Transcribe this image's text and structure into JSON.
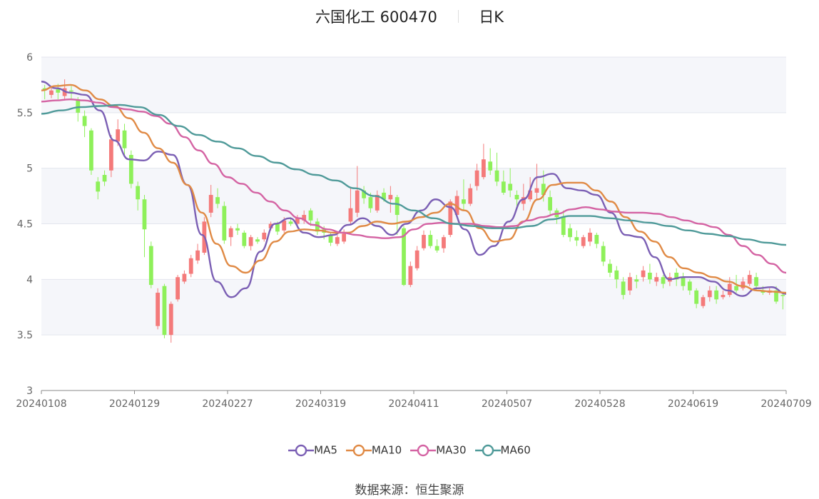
{
  "header": {
    "stock_name": "六国化工 600470",
    "period": "日K"
  },
  "source": {
    "label": "数据来源：",
    "provider": "恒生聚源"
  },
  "chart_data": {
    "type": "candlestick",
    "ylim": [
      3,
      6
    ],
    "yticks": [
      "3",
      "3.5",
      "4",
      "4.5",
      "5",
      "5.5",
      "6"
    ],
    "xticks": [
      "20240108",
      "20240129",
      "20240227",
      "20240319",
      "20240411",
      "20240507",
      "20240528",
      "20240619",
      "20240709"
    ],
    "up_color": "#f47a7a",
    "down_color": "#8ef05a",
    "grid_bands": true,
    "legend_position": "bottom",
    "series": [
      {
        "name": "MA5",
        "color": "#7b5fb4",
        "values": [
          5.78,
          5.72,
          5.68,
          5.66,
          5.52,
          5.25,
          5.08,
          5.07,
          5.15,
          5.12,
          4.85,
          4.4,
          3.98,
          3.84,
          3.92,
          4.25,
          4.5,
          4.55,
          4.42,
          4.38,
          4.4,
          4.49,
          4.55,
          4.48,
          4.4,
          4.5,
          4.62,
          4.72,
          4.65,
          4.45,
          4.22,
          4.3,
          4.52,
          4.72,
          4.92,
          4.95,
          4.82,
          4.8,
          4.76,
          4.6,
          4.4,
          4.38,
          4.2,
          4.0,
          4.02,
          4.02,
          3.98,
          3.9,
          3.85,
          3.92,
          3.93,
          3.87
        ]
      },
      {
        "name": "MA10",
        "color": "#e08a45",
        "values": [
          5.7,
          5.74,
          5.75,
          5.7,
          5.62,
          5.56,
          5.45,
          5.32,
          5.18,
          5.05,
          4.85,
          4.6,
          4.32,
          4.12,
          4.06,
          4.17,
          4.34,
          4.43,
          4.45,
          4.44,
          4.42,
          4.42,
          4.48,
          4.52,
          4.5,
          4.52,
          4.56,
          4.6,
          4.68,
          4.62,
          4.46,
          4.34,
          4.36,
          4.52,
          4.72,
          4.85,
          4.87,
          4.87,
          4.8,
          4.7,
          4.56,
          4.43,
          4.34,
          4.2,
          4.1,
          4.06,
          4.02,
          3.98,
          3.94,
          3.9,
          3.89,
          3.88
        ]
      },
      {
        "name": "MA30",
        "color": "#d463a3",
        "values": [
          5.6,
          5.61,
          5.62,
          5.61,
          5.59,
          5.55,
          5.53,
          5.51,
          5.47,
          5.4,
          5.28,
          5.16,
          5.04,
          4.92,
          4.86,
          4.78,
          4.7,
          4.62,
          4.55,
          4.49,
          4.45,
          4.42,
          4.4,
          4.38,
          4.37,
          4.38,
          4.45,
          4.5,
          4.51,
          4.5,
          4.5,
          4.48,
          4.47,
          4.48,
          4.53,
          4.56,
          4.59,
          4.63,
          4.65,
          4.63,
          4.61,
          4.6,
          4.6,
          4.59,
          4.56,
          4.53,
          4.5,
          4.47,
          4.4,
          4.3,
          4.22,
          4.14,
          4.06
        ]
      },
      {
        "name": "MA60",
        "color": "#4f9a99",
        "values": [
          5.49,
          5.52,
          5.55,
          5.56,
          5.57,
          5.55,
          5.48,
          5.38,
          5.3,
          5.24,
          5.18,
          5.11,
          5.05,
          4.99,
          4.94,
          4.89,
          4.82,
          4.75,
          4.68,
          4.62,
          4.55,
          4.5,
          4.48,
          4.46,
          4.46,
          4.48,
          4.54,
          4.57,
          4.57,
          4.55,
          4.53,
          4.51,
          4.48,
          4.44,
          4.41,
          4.39,
          4.36,
          4.33,
          4.31
        ]
      }
    ],
    "candles": [
      [
        5.72,
        5.7,
        5.75,
        5.62
      ],
      [
        5.66,
        5.7,
        5.74,
        5.63
      ],
      [
        5.71,
        5.68,
        5.76,
        5.62
      ],
      [
        5.65,
        5.72,
        5.8,
        5.62
      ],
      [
        5.7,
        5.69,
        5.74,
        5.62
      ],
      [
        5.62,
        5.5,
        5.64,
        5.42
      ],
      [
        5.47,
        5.38,
        5.52,
        5.28
      ],
      [
        5.34,
        4.98,
        5.36,
        4.94
      ],
      [
        4.88,
        4.79,
        4.92,
        4.72
      ],
      [
        4.94,
        4.88,
        4.98,
        4.84
      ],
      [
        4.98,
        5.26,
        5.3,
        4.92
      ],
      [
        5.24,
        5.35,
        5.44,
        5.2
      ],
      [
        5.34,
        5.18,
        5.4,
        5.12
      ],
      [
        5.12,
        4.86,
        5.16,
        4.82
      ],
      [
        4.84,
        4.72,
        4.88,
        4.62
      ],
      [
        4.72,
        4.45,
        4.76,
        4.2
      ],
      [
        4.3,
        3.95,
        4.34,
        3.92
      ],
      [
        3.58,
        3.88,
        3.92,
        3.55
      ],
      [
        3.94,
        3.5,
        3.96,
        3.47
      ],
      [
        3.5,
        3.78,
        3.8,
        3.43
      ],
      [
        3.82,
        4.02,
        4.04,
        3.8
      ],
      [
        3.98,
        4.05,
        4.08,
        3.96
      ],
      [
        4.05,
        4.19,
        4.22,
        4.02
      ],
      [
        4.17,
        4.26,
        4.32,
        4.14
      ],
      [
        4.24,
        4.52,
        4.56,
        4.22
      ],
      [
        4.6,
        4.76,
        4.85,
        4.56
      ],
      [
        4.74,
        4.68,
        4.82,
        4.64
      ],
      [
        4.66,
        4.35,
        4.7,
        4.32
      ],
      [
        4.38,
        4.46,
        4.48,
        4.3
      ],
      [
        4.46,
        4.44,
        4.5,
        4.4
      ],
      [
        4.42,
        4.3,
        4.44,
        4.28
      ],
      [
        4.3,
        4.38,
        4.4,
        4.26
      ],
      [
        4.36,
        4.34,
        4.38,
        4.32
      ],
      [
        4.36,
        4.42,
        4.45,
        4.34
      ],
      [
        4.46,
        4.5,
        4.52,
        4.44
      ],
      [
        4.5,
        4.43,
        4.52,
        4.4
      ],
      [
        4.44,
        4.53,
        4.56,
        4.42
      ],
      [
        4.52,
        4.5,
        4.56,
        4.48
      ],
      [
        4.5,
        4.55,
        4.58,
        4.46
      ],
      [
        4.53,
        4.58,
        4.62,
        4.5
      ],
      [
        4.62,
        4.53,
        4.64,
        4.48
      ],
      [
        4.52,
        4.43,
        4.55,
        4.4
      ],
      [
        4.45,
        4.42,
        4.48,
        4.36
      ],
      [
        4.4,
        4.33,
        4.42,
        4.3
      ],
      [
        4.32,
        4.38,
        4.4,
        4.3
      ],
      [
        4.34,
        4.41,
        4.45,
        4.32
      ],
      [
        4.52,
        4.64,
        4.82,
        4.5
      ],
      [
        4.6,
        4.8,
        5.02,
        4.56
      ],
      [
        4.8,
        4.73,
        4.84,
        4.68
      ],
      [
        4.74,
        4.64,
        4.78,
        4.6
      ],
      [
        4.62,
        4.76,
        4.8,
        4.6
      ],
      [
        4.78,
        4.72,
        4.82,
        4.7
      ],
      [
        4.72,
        4.76,
        4.84,
        4.6
      ],
      [
        4.74,
        4.58,
        4.76,
        4.4
      ],
      [
        4.46,
        3.95,
        4.48,
        3.94
      ],
      [
        3.95,
        4.12,
        4.16,
        3.93
      ],
      [
        4.1,
        4.26,
        4.3,
        4.08
      ],
      [
        4.28,
        4.4,
        4.44,
        4.26
      ],
      [
        4.4,
        4.3,
        4.44,
        4.28
      ],
      [
        4.3,
        4.26,
        4.36,
        4.24
      ],
      [
        4.28,
        4.38,
        4.4,
        4.24
      ],
      [
        4.4,
        4.7,
        4.72,
        4.38
      ],
      [
        4.58,
        4.75,
        4.8,
        4.56
      ],
      [
        4.72,
        4.68,
        4.9,
        4.62
      ],
      [
        4.68,
        4.82,
        4.86,
        4.66
      ],
      [
        4.84,
        4.98,
        5.04,
        4.8
      ],
      [
        4.92,
        5.08,
        5.22,
        4.9
      ],
      [
        5.06,
        4.98,
        5.18,
        4.94
      ],
      [
        4.98,
        4.88,
        5.14,
        4.84
      ],
      [
        4.88,
        4.78,
        4.98,
        4.76
      ],
      [
        4.86,
        4.8,
        5.0,
        4.74
      ],
      [
        4.76,
        4.72,
        4.8,
        4.66
      ],
      [
        4.68,
        4.74,
        4.86,
        4.62
      ],
      [
        4.72,
        4.8,
        4.92,
        4.7
      ],
      [
        4.78,
        4.82,
        5.04,
        4.72
      ],
      [
        4.86,
        4.76,
        4.98,
        4.7
      ],
      [
        4.74,
        4.62,
        4.8,
        4.58
      ],
      [
        4.62,
        4.56,
        4.64,
        4.5
      ],
      [
        4.56,
        4.4,
        4.62,
        4.38
      ],
      [
        4.46,
        4.38,
        4.5,
        4.34
      ],
      [
        4.38,
        4.35,
        4.44,
        4.3
      ],
      [
        4.3,
        4.38,
        4.4,
        4.28
      ],
      [
        4.34,
        4.42,
        4.46,
        4.3
      ],
      [
        4.4,
        4.32,
        4.42,
        4.28
      ],
      [
        4.3,
        4.16,
        4.34,
        4.12
      ],
      [
        4.14,
        4.06,
        4.18,
        4.02
      ],
      [
        4.08,
        4.0,
        4.12,
        3.92
      ],
      [
        3.98,
        3.86,
        4.02,
        3.82
      ],
      [
        3.9,
        4.02,
        4.06,
        3.86
      ],
      [
        4.0,
        3.98,
        4.04,
        3.92
      ],
      [
        4.02,
        4.08,
        4.12,
        3.98
      ],
      [
        4.06,
        4.0,
        4.14,
        3.96
      ],
      [
        3.98,
        4.02,
        4.06,
        3.94
      ],
      [
        4.02,
        3.96,
        4.04,
        3.92
      ],
      [
        3.98,
        4.02,
        4.06,
        3.94
      ],
      [
        4.06,
        4.0,
        4.1,
        3.94
      ],
      [
        4.02,
        3.94,
        4.06,
        3.9
      ],
      [
        3.98,
        3.9,
        4.0,
        3.86
      ],
      [
        3.9,
        3.78,
        3.92,
        3.74
      ],
      [
        3.76,
        3.84,
        3.86,
        3.74
      ],
      [
        3.84,
        3.9,
        3.94,
        3.8
      ],
      [
        3.9,
        3.82,
        3.94,
        3.78
      ],
      [
        3.84,
        3.86,
        3.9,
        3.82
      ],
      [
        3.86,
        3.96,
        4.02,
        3.84
      ],
      [
        3.94,
        3.9,
        4.04,
        3.88
      ],
      [
        3.92,
        3.98,
        4.02,
        3.9
      ],
      [
        3.96,
        4.04,
        4.08,
        3.94
      ],
      [
        4.02,
        3.94,
        4.06,
        3.9
      ],
      [
        3.9,
        3.88,
        3.94,
        3.86
      ],
      [
        3.88,
        3.9,
        3.92,
        3.86
      ],
      [
        3.9,
        3.8,
        3.94,
        3.78
      ],
      [
        3.86,
        3.85,
        3.88,
        3.73
      ]
    ]
  }
}
